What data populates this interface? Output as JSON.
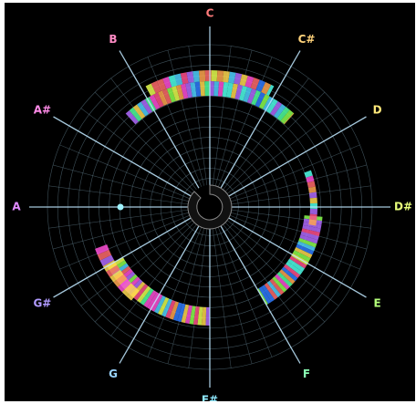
{
  "visualizer": {
    "notes": [
      {
        "name": "C",
        "color": "#ff7b7b"
      },
      {
        "name": "C#",
        "color": "#ffd27a"
      },
      {
        "name": "D",
        "color": "#ffe97a"
      },
      {
        "name": "D#",
        "color": "#e8ff7a"
      },
      {
        "name": "E",
        "color": "#b5ff7a"
      },
      {
        "name": "F",
        "color": "#8affb4"
      },
      {
        "name": "F#",
        "color": "#8fe9ff"
      },
      {
        "name": "G",
        "color": "#9ad4ff"
      },
      {
        "name": "G#",
        "color": "#b19bff"
      },
      {
        "name": "A",
        "color": "#e08bff"
      },
      {
        "name": "A#",
        "color": "#ff8be8"
      },
      {
        "name": "B",
        "color": "#ff8bc4"
      }
    ],
    "grid_color": "#6f8fa0",
    "axis_color": "#bfe8ff",
    "background_color": "#000000",
    "cursor_color": "#9ff3ff"
  }
}
